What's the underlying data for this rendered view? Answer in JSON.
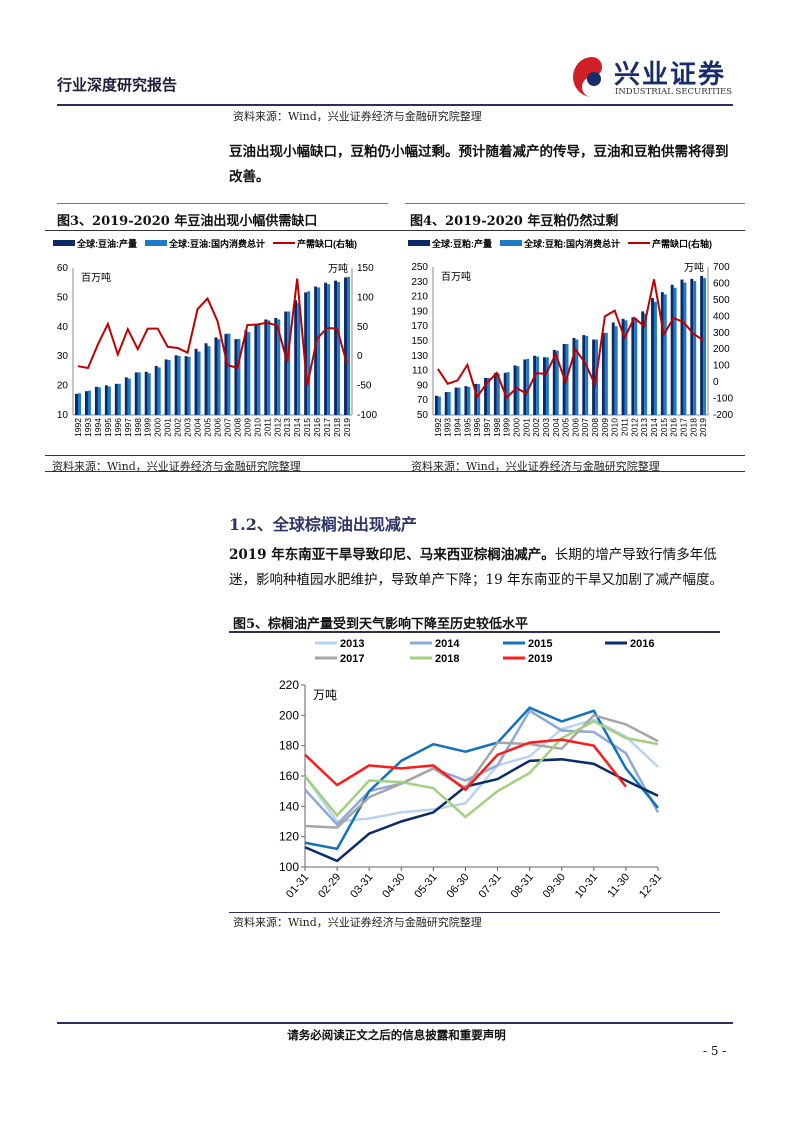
{
  "header": {
    "report_type": "行业深度研究报告",
    "logo_text": "兴业证券",
    "logo_subtext": "INDUSTRIAL SECURITIES"
  },
  "top_source": "资料来源：Wind，兴业证券经济与金融研究院整理",
  "para1": "豆油出现小幅缺口，豆粕仍小幅过剩。预计随着减产的传导，豆油和豆粕供需将得到改善。",
  "fig3": {
    "title": "图3、2019-2020 年豆油出现小幅供需缺口",
    "source": "资料来源：Wind，兴业证券经济与金融研究院整理"
  },
  "fig4": {
    "title": "图4、2019-2020 年豆粕仍然过剩",
    "source": "资料来源：Wind，兴业证券经济与金融研究院整理"
  },
  "section": {
    "heading": "1.2、全球棕榈油出现减产",
    "para_bold": "2019 年东南亚干旱导致印尼、马来西亚棕榈油减产。",
    "para_rest": "长期的增产导致行情多年低迷，影响种植园水肥维护，导致单产下降；19 年东南亚的干旱又加剧了减产幅度。"
  },
  "fig5": {
    "title": "图5、棕榈油产量受到天气影响下降至历史较低水平",
    "source": "资料来源：Wind，兴业证券经济与金融研究院整理"
  },
  "footer": {
    "disclaimer": "请务必阅读正文之后的信息披露和重要声明",
    "page": "- 5 -"
  },
  "chart_data": [
    {
      "type": "bar",
      "categories": [
        "1992",
        "1993",
        "1994",
        "1995",
        "1996",
        "1997",
        "1998",
        "1999",
        "2000",
        "2001",
        "2002",
        "2003",
        "2004",
        "2005",
        "2006",
        "2007",
        "2008",
        "2009",
        "2010",
        "2011",
        "2012",
        "2013",
        "2014",
        "2015",
        "2016",
        "2017",
        "2018",
        "2019"
      ],
      "ylabel": "百万吨",
      "y2label": "万吨",
      "ylim": [
        10,
        60
      ],
      "yticks": [
        10,
        20,
        30,
        40,
        50,
        60
      ],
      "y2lim": [
        -100,
        150
      ],
      "y2ticks": [
        -100,
        -50,
        0,
        50,
        100,
        150
      ],
      "legend": "top",
      "series": [
        {
          "name": "全球:豆油:产量",
          "type": "bar",
          "axis": "left",
          "color": "#0c2a66",
          "values": [
            17.2,
            18.1,
            19.6,
            20.1,
            20.6,
            22.8,
            24.5,
            24.7,
            26.7,
            28.9,
            30.3,
            30.0,
            32.5,
            34.4,
            36.4,
            37.6,
            35.8,
            38.8,
            41.0,
            42.5,
            43.0,
            45.2,
            49.0,
            51.7,
            53.7,
            55.0,
            55.7,
            56.8
          ]
        },
        {
          "name": "全球:豆油:国内消费总计",
          "type": "bar",
          "axis": "left",
          "color": "#1f7bc8",
          "values": [
            17.4,
            18.3,
            19.4,
            19.7,
            20.6,
            22.4,
            24.5,
            24.2,
            26.2,
            28.7,
            30.1,
            29.8,
            31.6,
            33.4,
            35.8,
            37.7,
            35.9,
            38.2,
            41.0,
            42.2,
            42.5,
            45.2,
            48.0,
            52.1,
            53.4,
            54.5,
            55.2,
            57.0
          ]
        },
        {
          "name": "产需缺口(右轴)",
          "type": "line",
          "axis": "right",
          "color": "#c00000",
          "values": [
            -17,
            -20,
            20,
            55,
            3,
            46,
            12,
            47,
            47,
            16,
            14,
            6,
            80,
            98,
            60,
            -15,
            -20,
            53,
            54,
            57,
            52,
            -10,
            132,
            -50,
            30,
            48,
            47,
            -13
          ]
        }
      ]
    },
    {
      "type": "bar",
      "categories": [
        "1992",
        "1993",
        "1994",
        "1995",
        "1996",
        "1997",
        "1998",
        "1999",
        "2000",
        "2001",
        "2002",
        "2003",
        "2004",
        "2005",
        "2006",
        "2007",
        "2008",
        "2009",
        "2010",
        "2011",
        "2012",
        "2013",
        "2014",
        "2015",
        "2016",
        "2017",
        "2018",
        "2019"
      ],
      "ylabel": "百万吨",
      "y2label": "万吨",
      "ylim": [
        50,
        250
      ],
      "yticks": [
        50,
        70,
        90,
        110,
        130,
        150,
        170,
        190,
        210,
        230,
        250
      ],
      "y2lim": [
        -200,
        700
      ],
      "y2ticks": [
        -200,
        -100,
        0,
        100,
        200,
        300,
        400,
        500,
        600,
        700
      ],
      "legend": "top",
      "series": [
        {
          "name": "全球:豆粕:产量",
          "type": "bar",
          "axis": "left",
          "color": "#0c2a66",
          "values": [
            76,
            81,
            87,
            89,
            92,
            100,
            107,
            107,
            117,
            125,
            130,
            128,
            138,
            146,
            154,
            158,
            152,
            161,
            175,
            180,
            182,
            190,
            208,
            216,
            226,
            233,
            234,
            238
          ]
        },
        {
          "name": "全球:豆粕:国内消费总计",
          "type": "bar",
          "axis": "left",
          "color": "#1f7bc8",
          "values": [
            75,
            81,
            87,
            88,
            92,
            100,
            106,
            108,
            116,
            126,
            129,
            128,
            137,
            146,
            152,
            157,
            152,
            161,
            170,
            178,
            181,
            187,
            203,
            213,
            222,
            229,
            231,
            235
          ]
        },
        {
          "name": "产需缺口(右轴)",
          "type": "line",
          "axis": "right",
          "color": "#c00000",
          "values": [
            80,
            -10,
            10,
            105,
            -90,
            -5,
            55,
            -95,
            -35,
            -70,
            55,
            50,
            170,
            0,
            200,
            115,
            -15,
            400,
            435,
            270,
            390,
            340,
            625,
            290,
            390,
            365,
            295,
            255
          ]
        }
      ]
    },
    {
      "type": "line",
      "categories": [
        "01-31",
        "02-29",
        "03-31",
        "04-30",
        "05-31",
        "06-30",
        "07-31",
        "08-31",
        "09-30",
        "10-31",
        "11-30",
        "12-31"
      ],
      "ylabel": "万吨",
      "ylim": [
        100,
        220
      ],
      "yticks": [
        100,
        120,
        140,
        160,
        180,
        200,
        220
      ],
      "legend": "top",
      "series": [
        {
          "name": "2013",
          "color": "#b8d4ee",
          "values": [
            160,
            130,
            132,
            136,
            138,
            142,
            167,
            173,
            191,
            197,
            186,
            166
          ]
        },
        {
          "name": "2014",
          "color": "#8fa8dc",
          "values": [
            151,
            128,
            150,
            155,
            165,
            157,
            167,
            203,
            190,
            189,
            175,
            136
          ]
        },
        {
          "name": "2015",
          "color": "#1272c0",
          "values": [
            116,
            112,
            150,
            170,
            181,
            176,
            182,
            205,
            196,
            203,
            165,
            139
          ]
        },
        {
          "name": "2016",
          "color": "#0c2b6a",
          "values": [
            113,
            104,
            122,
            130,
            136,
            153,
            158,
            170,
            171,
            168,
            157,
            147
          ]
        },
        {
          "name": "2017",
          "color": "#a6a6a6",
          "values": [
            127,
            126,
            146,
            155,
            165,
            152,
            182,
            181,
            178,
            200,
            194,
            183
          ]
        },
        {
          "name": "2018",
          "color": "#a2d07f",
          "values": [
            160,
            134,
            157,
            156,
            152,
            133,
            150,
            162,
            185,
            196,
            185,
            181
          ]
        },
        {
          "name": "2019",
          "color": "#ff1a1a",
          "values": [
            174,
            154,
            167,
            165,
            167,
            151,
            174,
            182,
            184,
            180,
            153,
            null
          ]
        }
      ]
    }
  ]
}
